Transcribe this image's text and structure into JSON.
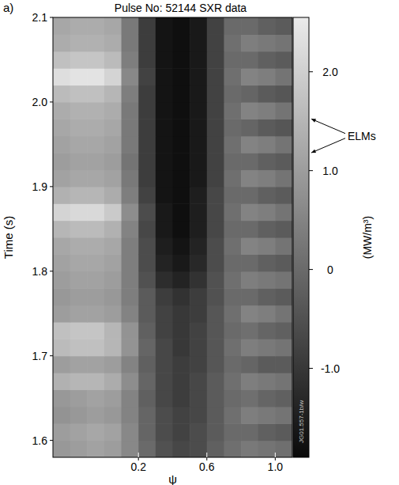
{
  "chart_data": {
    "type": "heatmap",
    "panel_label": "a)",
    "title": "Pulse No: 52144 SXR data",
    "x_label": "ψ",
    "y_label": "Time (s)",
    "xlim": [
      -0.3,
      1.1
    ],
    "xticks": [
      0.2,
      0.6,
      {
        "value": 1.0,
        "label": "1.0"
      }
    ],
    "ylim": [
      1.58,
      2.1
    ],
    "yticks": [
      1.6,
      1.7,
      1.8,
      1.9,
      {
        "value": 2.0,
        "label": "2.0"
      },
      2.1
    ],
    "x": [
      -0.25,
      -0.15,
      -0.05,
      0.05,
      0.15,
      0.25,
      0.35,
      0.45,
      0.55,
      0.65,
      0.75,
      0.85,
      0.95,
      1.05
    ],
    "y": [
      1.59,
      1.61,
      1.63,
      1.65,
      1.67,
      1.69,
      1.71,
      1.73,
      1.75,
      1.77,
      1.79,
      1.81,
      1.83,
      1.85,
      1.87,
      1.89,
      1.91,
      1.93,
      1.95,
      1.97,
      1.99,
      2.01,
      2.03,
      2.05,
      2.07,
      2.09
    ],
    "values": [
      [
        0.9,
        1.0,
        1.1,
        1.0,
        0.6,
        0.0,
        -0.5,
        -0.7,
        -0.6,
        -0.2,
        0.1,
        0.3,
        0.2,
        0.1
      ],
      [
        1.0,
        1.1,
        1.2,
        1.1,
        0.6,
        -0.1,
        -0.6,
        -0.8,
        -0.6,
        -0.3,
        0.0,
        0.0,
        -0.2,
        -0.3
      ],
      [
        0.8,
        0.9,
        1.0,
        0.9,
        0.5,
        -0.1,
        -0.6,
        -0.8,
        -0.7,
        -0.3,
        0.1,
        0.4,
        0.3,
        0.2
      ],
      [
        0.9,
        1.0,
        1.1,
        1.0,
        0.5,
        -0.2,
        -0.7,
        -0.9,
        -0.7,
        -0.3,
        0.0,
        0.1,
        -0.1,
        -0.2
      ],
      [
        1.4,
        1.5,
        1.5,
        1.3,
        0.7,
        -0.1,
        -0.7,
        -0.9,
        -0.7,
        -0.3,
        0.1,
        0.4,
        0.3,
        0.2
      ],
      [
        1.0,
        1.1,
        1.1,
        1.0,
        0.5,
        -0.2,
        -0.7,
        -0.9,
        -0.8,
        -0.4,
        0.0,
        -0.1,
        -0.3,
        -0.3
      ],
      [
        1.6,
        1.7,
        1.7,
        1.5,
        0.8,
        -0.1,
        -0.7,
        -1.0,
        -0.8,
        -0.4,
        0.1,
        0.4,
        0.3,
        0.2
      ],
      [
        1.7,
        1.8,
        1.8,
        1.5,
        0.8,
        -0.2,
        -0.8,
        -1.0,
        -0.8,
        -0.4,
        0.0,
        0.1,
        -0.1,
        -0.2
      ],
      [
        1.0,
        1.1,
        1.1,
        1.0,
        0.5,
        -0.3,
        -0.8,
        -1.0,
        -0.9,
        -0.4,
        0.1,
        0.5,
        0.4,
        0.2
      ],
      [
        0.9,
        1.0,
        1.0,
        0.9,
        0.4,
        -0.3,
        -0.9,
        -1.1,
        -0.9,
        -0.5,
        0.0,
        0.0,
        -0.2,
        -0.3
      ],
      [
        1.0,
        1.1,
        1.1,
        1.0,
        0.4,
        -0.5,
        -1.2,
        -1.4,
        -1.1,
        -0.5,
        0.1,
        0.4,
        0.3,
        0.2
      ],
      [
        1.1,
        1.2,
        1.2,
        1.1,
        0.4,
        -0.6,
        -1.4,
        -1.6,
        -1.3,
        -0.6,
        0.0,
        0.0,
        -0.2,
        -0.3
      ],
      [
        1.2,
        1.3,
        1.3,
        1.2,
        0.4,
        -0.6,
        -1.5,
        -1.7,
        -1.4,
        -0.6,
        0.1,
        0.5,
        0.4,
        0.2
      ],
      [
        1.5,
        1.6,
        1.6,
        1.4,
        0.5,
        -0.7,
        -1.6,
        -1.8,
        -1.5,
        -0.7,
        0.0,
        0.0,
        -0.2,
        -0.3
      ],
      [
        2.1,
        2.2,
        2.2,
        1.9,
        0.7,
        -0.6,
        -1.6,
        -1.8,
        -1.5,
        -0.7,
        0.1,
        0.5,
        0.4,
        0.2
      ],
      [
        1.4,
        1.5,
        1.5,
        1.3,
        0.4,
        -0.8,
        -1.7,
        -1.8,
        -1.5,
        -0.7,
        0.0,
        0.0,
        -0.2,
        -0.3
      ],
      [
        1.1,
        1.2,
        1.2,
        1.1,
        0.3,
        -0.9,
        -1.7,
        -1.8,
        -1.6,
        -0.8,
        0.1,
        0.5,
        0.4,
        0.2
      ],
      [
        1.0,
        1.1,
        1.1,
        1.0,
        0.2,
        -0.9,
        -1.7,
        -1.8,
        -1.6,
        -0.8,
        0.0,
        0.0,
        -0.2,
        -0.3
      ],
      [
        1.1,
        1.2,
        1.2,
        1.1,
        0.3,
        -0.9,
        -1.7,
        -1.8,
        -1.6,
        -0.8,
        0.1,
        0.5,
        0.4,
        0.2
      ],
      [
        1.2,
        1.3,
        1.3,
        1.2,
        0.3,
        -0.9,
        -1.7,
        -1.8,
        -1.6,
        -0.8,
        0.0,
        -0.1,
        -0.3,
        -0.4
      ],
      [
        1.3,
        1.4,
        1.4,
        1.3,
        0.3,
        -0.9,
        -1.7,
        -1.8,
        -1.6,
        -0.8,
        0.1,
        0.5,
        0.4,
        0.2
      ],
      [
        1.6,
        1.7,
        1.7,
        1.5,
        0.4,
        -0.9,
        -1.7,
        -1.8,
        -1.6,
        -0.8,
        0.0,
        -0.1,
        -0.3,
        -0.4
      ],
      [
        2.3,
        2.4,
        2.4,
        2.1,
        0.6,
        -0.8,
        -1.7,
        -1.8,
        -1.6,
        -0.8,
        0.1,
        0.5,
        0.4,
        0.2
      ],
      [
        1.7,
        1.8,
        1.8,
        1.6,
        0.4,
        -0.9,
        -1.7,
        -1.8,
        -1.6,
        -0.8,
        0.0,
        0.0,
        -0.2,
        -0.3
      ],
      [
        1.3,
        1.4,
        1.4,
        1.3,
        0.3,
        -0.9,
        -1.7,
        -1.8,
        -1.6,
        -0.8,
        0.1,
        0.4,
        0.3,
        0.2
      ],
      [
        1.2,
        1.3,
        1.3,
        1.2,
        0.3,
        -0.9,
        -1.7,
        -1.8,
        -1.6,
        -0.8,
        0.0,
        0.0,
        -0.2,
        -0.3
      ]
    ],
    "colorbar_range": [
      -1.9,
      2.55
    ],
    "colorbar_ticks": [
      {
        "value": -1.0,
        "label": "-1.0"
      },
      0,
      {
        "value": 1.0,
        "label": "1.0"
      },
      {
        "value": 2.0,
        "label": "2.0"
      }
    ],
    "colorbar_label": "(MW/m³)",
    "annotations": [
      {
        "text": "ELMs",
        "y": [
          1.98,
          1.94
        ]
      }
    ],
    "source_label": "JG01.557-1b/w"
  }
}
